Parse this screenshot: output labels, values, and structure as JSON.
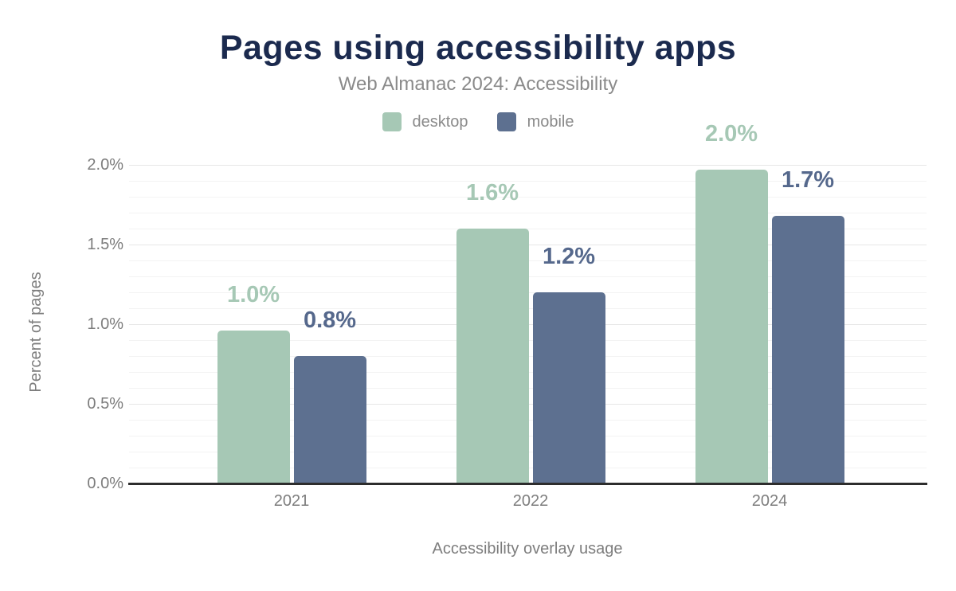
{
  "colors": {
    "background": "#ffffff",
    "title": "#1b2a4e",
    "subtitle": "#8a8a8a",
    "tick_text": "#7d7d7d",
    "axis_line": "#2d2d2d",
    "grid_major": "#e7e7e7",
    "grid_minor": "#f3f3f3",
    "desktop": "#a6c8b5",
    "mobile": "#5d7090"
  },
  "chart_data": {
    "type": "bar",
    "title": "Pages using accessibility apps",
    "subtitle": "Web Almanac 2024: Accessibility",
    "xlabel": "Accessibility overlay usage",
    "ylabel": "Percent of pages",
    "categories": [
      "2021",
      "2022",
      "2024"
    ],
    "series": [
      {
        "name": "desktop",
        "color": "#a6c8b5",
        "label_color": "#a6c8b5",
        "values": [
          0.96,
          1.6,
          1.97
        ],
        "labels": [
          "1.0%",
          "1.6%",
          "2.0%"
        ]
      },
      {
        "name": "mobile",
        "color": "#5d7090",
        "label_color": "#55688c",
        "values": [
          0.8,
          1.2,
          1.68
        ],
        "labels": [
          "0.8%",
          "1.2%",
          "1.7%"
        ]
      }
    ],
    "ylim": [
      0,
      2
    ],
    "yticks": [
      {
        "value": 0,
        "label": "0.0%"
      },
      {
        "value": 0.5,
        "label": "0.5%"
      },
      {
        "value": 1,
        "label": "1.0%"
      },
      {
        "value": 1.5,
        "label": "1.5%"
      },
      {
        "value": 2,
        "label": "2.0%"
      }
    ],
    "grid": "horizontal; minor every 0.1%, major every 0.5%",
    "legend_position": "top-center",
    "value_labels": "above each bar"
  }
}
